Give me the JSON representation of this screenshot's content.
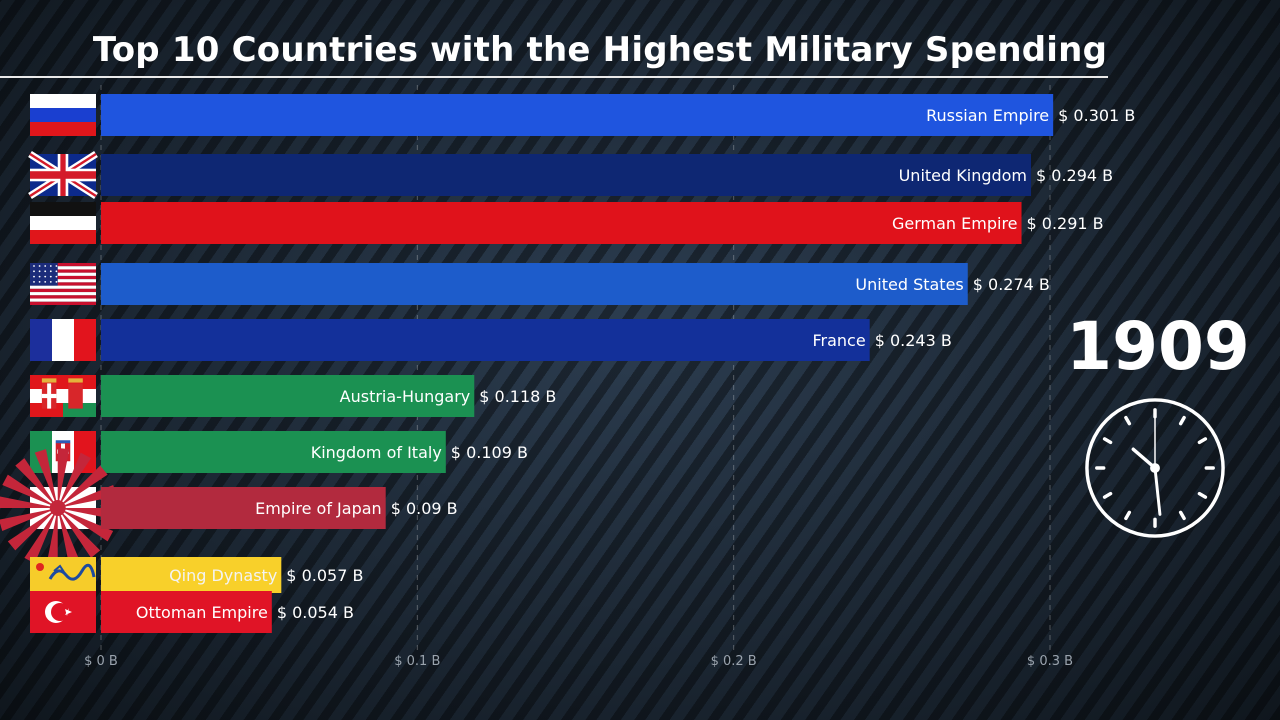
{
  "chart_data": {
    "type": "bar",
    "orientation": "horizontal",
    "title": "Top 10 Countries with the Highest Military Spending",
    "year": "1909",
    "value_prefix": "$ ",
    "value_suffix": " B",
    "xlim": [
      0,
      0.3
    ],
    "ticks": [
      {
        "value": 0,
        "label": "$ 0 B"
      },
      {
        "value": 0.1,
        "label": "$ 0.1 B"
      },
      {
        "value": 0.2,
        "label": "$ 0.2 B"
      },
      {
        "value": 0.3,
        "label": "$ 0.3 B"
      }
    ],
    "bars": [
      {
        "name": "Russian Empire",
        "value": 0.301,
        "label": "$ 0.301 B",
        "color": "#1f55df",
        "flag": "russia-flag"
      },
      {
        "name": "United Kingdom",
        "value": 0.294,
        "label": "$ 0.294 B",
        "color": "#0e2773",
        "flag": "uk-flag"
      },
      {
        "name": "German Empire",
        "value": 0.291,
        "label": "$ 0.291 B",
        "color": "#e0121b",
        "flag": "german-empire-flag"
      },
      {
        "name": "United States",
        "value": 0.274,
        "label": "$ 0.274 B",
        "color": "#1d5ccb",
        "flag": "usa-flag"
      },
      {
        "name": "France",
        "value": 0.243,
        "label": "$ 0.243 B",
        "color": "#13309a",
        "flag": "france-flag"
      },
      {
        "name": "Austria-Hungary",
        "value": 0.118,
        "label": "$ 0.118 B",
        "color": "#1b9152",
        "flag": "austria-hungary-flag"
      },
      {
        "name": "Kingdom of Italy",
        "value": 0.109,
        "label": "$ 0.109 B",
        "color": "#1b9152",
        "flag": "italy-flag"
      },
      {
        "name": "Empire of Japan",
        "value": 0.09,
        "label": "$ 0.09 B",
        "color": "#b22a3e",
        "flag": "japan-flag"
      },
      {
        "name": "Qing Dynasty",
        "value": 0.057,
        "label": "$ 0.057 B",
        "color": "#f8d02a",
        "flag": "qing-flag"
      },
      {
        "name": "Ottoman Empire",
        "value": 0.054,
        "label": "$ 0.054 B",
        "color": "#e01426",
        "flag": "ottoman-flag"
      }
    ]
  }
}
